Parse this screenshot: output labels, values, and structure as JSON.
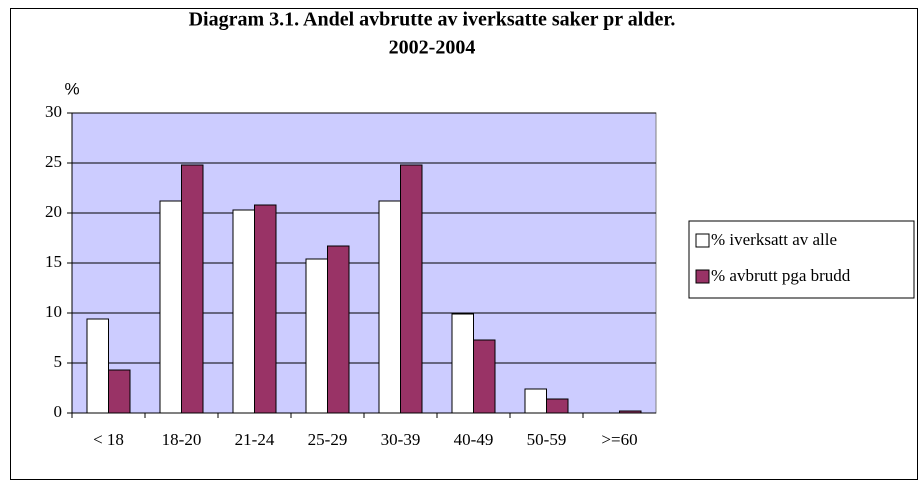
{
  "chart_data": {
    "type": "bar",
    "title": "Diagram 3.1. Andel avbrutte av iverksatte saker pr alder.",
    "subtitle": "2002-2004",
    "y_label": "%",
    "categories": [
      "< 18",
      "18-20",
      "21-24",
      "25-29",
      "30-39",
      "40-49",
      "50-59",
      ">=60"
    ],
    "series": [
      {
        "name": "% iverksatt av alle",
        "color": "#ffffff",
        "values": [
          9.4,
          21.2,
          20.3,
          15.4,
          21.2,
          9.9,
          2.4,
          0
        ]
      },
      {
        "name": "% avbrutt pga brudd",
        "color": "#993366",
        "values": [
          4.3,
          24.8,
          20.8,
          16.7,
          24.8,
          7.3,
          1.4,
          0.2
        ]
      }
    ],
    "ylim": [
      0,
      30
    ],
    "yticks": [
      0,
      5,
      10,
      15,
      20,
      25,
      30
    ],
    "grid": true,
    "legend": "right",
    "plot_background": "#ccccff"
  }
}
